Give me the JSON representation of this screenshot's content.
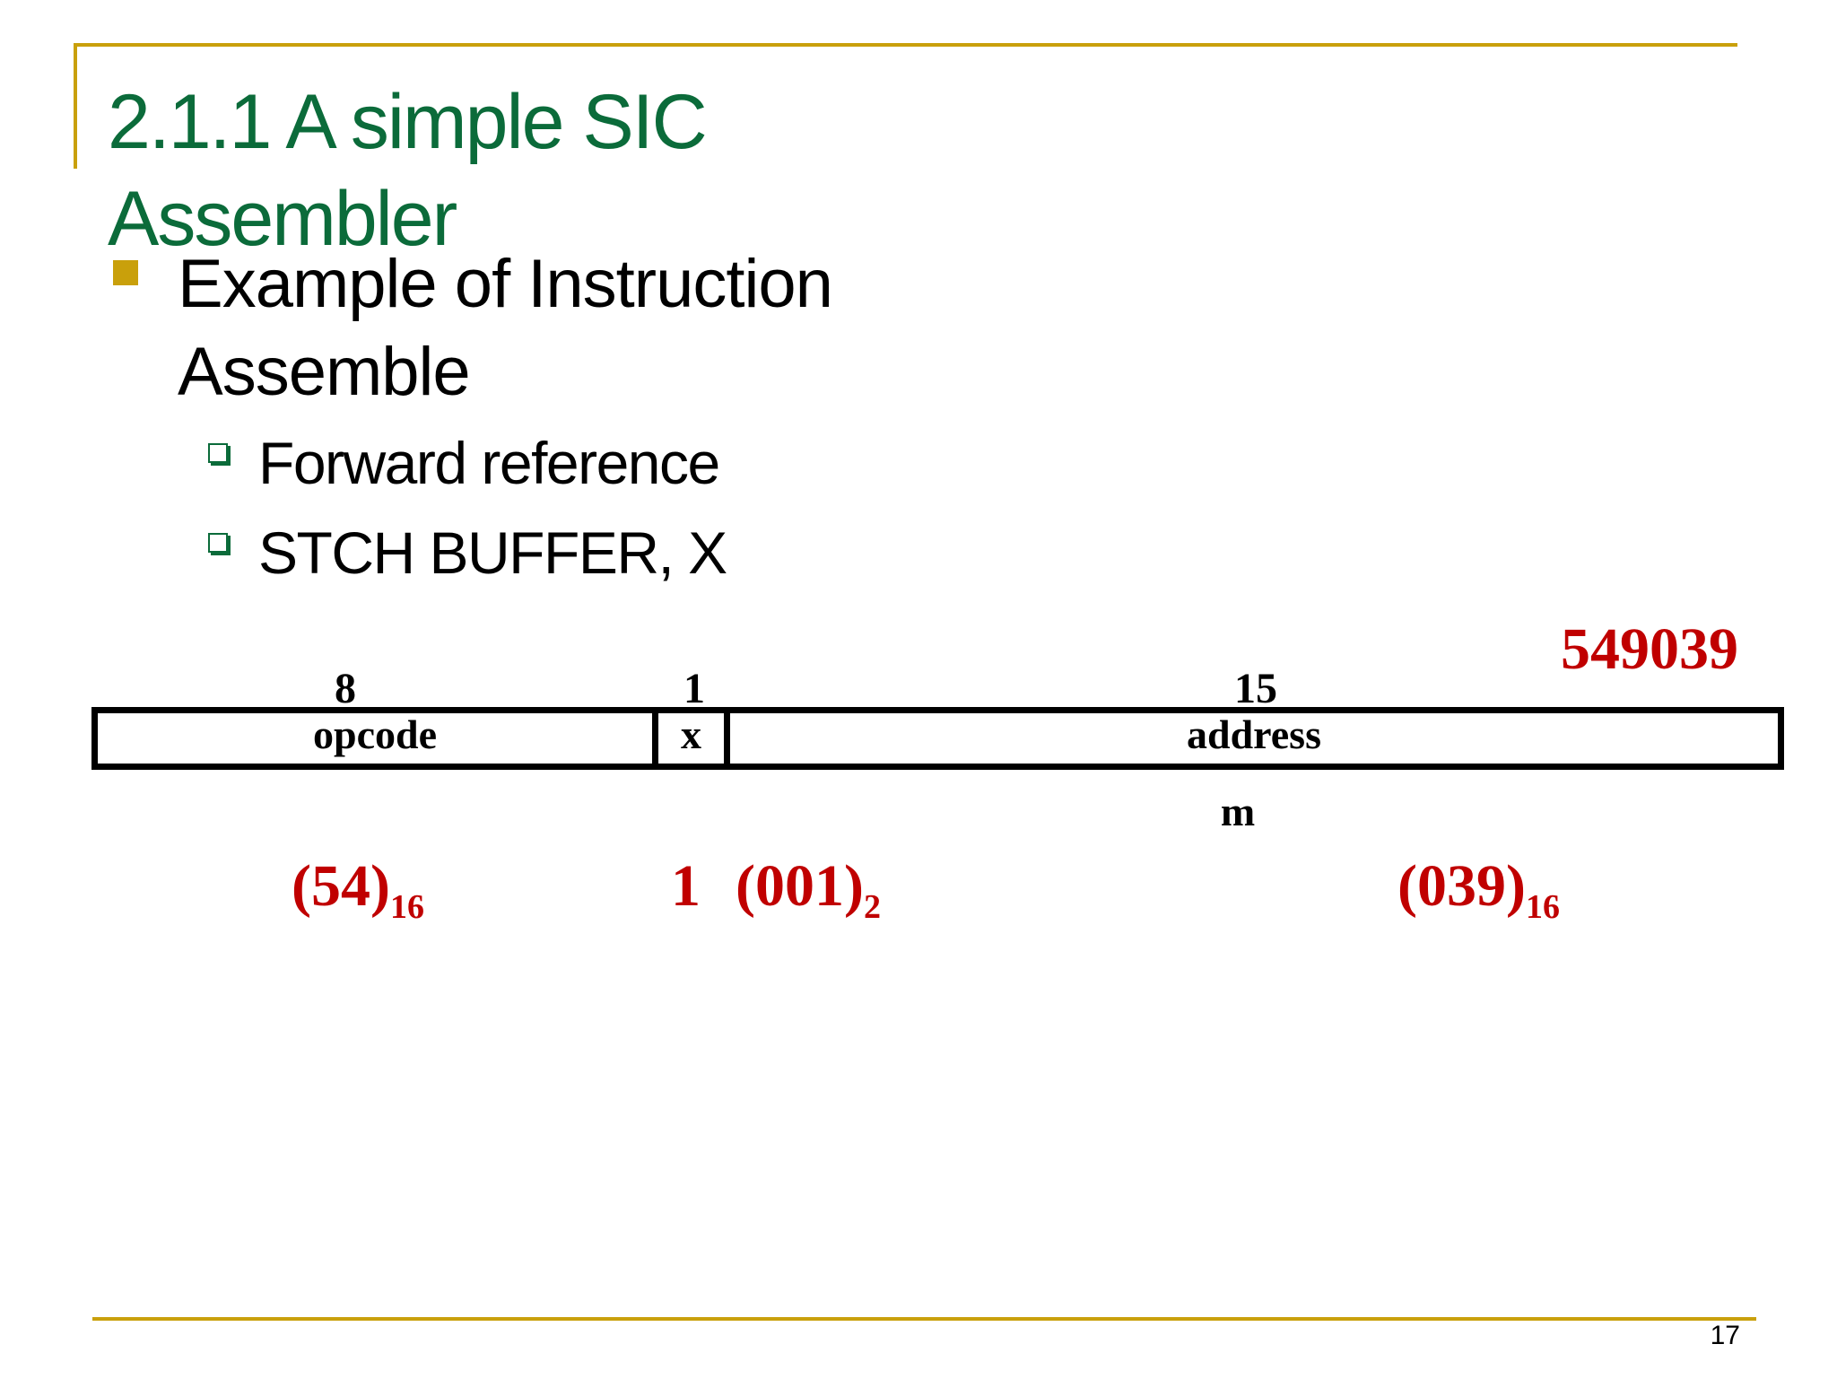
{
  "slide": {
    "title": "2.1.1  A simple SIC Assembler",
    "bullet": "Example of Instruction Assemble",
    "sub_bullets": [
      "Forward reference",
      "STCH BUFFER, X"
    ],
    "page_number": "17"
  },
  "diagram": {
    "bit_widths": [
      "8",
      "1",
      "15"
    ],
    "fields": [
      "opcode",
      "x",
      "address"
    ],
    "address_note": "m",
    "values": {
      "opcode": {
        "main": "(54)",
        "sub": "16"
      },
      "x": {
        "main": "1"
      },
      "x_binary": {
        "main": "(001)",
        "sub": "2"
      },
      "address": {
        "main": "(039)",
        "sub": "16"
      }
    },
    "result": "549039"
  },
  "colors": {
    "title": "#0b6b3a",
    "accent_rule": "#c9a00b",
    "highlight": "#c00000"
  }
}
